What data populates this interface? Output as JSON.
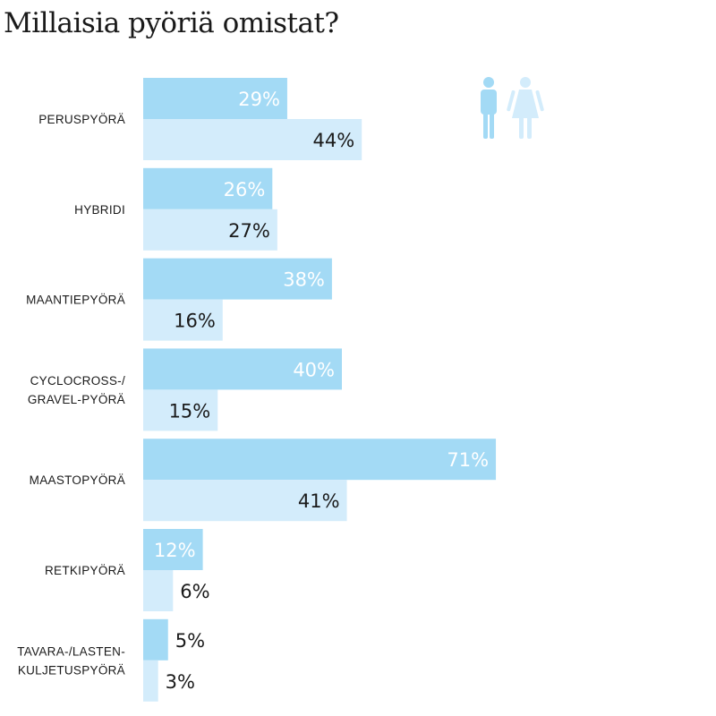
{
  "chart_data": {
    "type": "bar",
    "orientation": "horizontal",
    "title": "Millaisia pyöriä omistat?",
    "categories": [
      [
        "PERUSPYÖRÄ"
      ],
      [
        "HYBRIDI"
      ],
      [
        "MAANTIEPYÖRÄ"
      ],
      [
        "CYCLOCROSS-/",
        "GRAVEL-PYÖRÄ"
      ],
      [
        "MAASTOPYÖRÄ"
      ],
      [
        "RETKIPYÖRÄ"
      ],
      [
        "TAVARA-/LASTEN-",
        "KULJETUSPYÖRÄ"
      ]
    ],
    "series": [
      {
        "name": "men",
        "icon": "man-icon",
        "color": "#a3daf5",
        "values": [
          29,
          26,
          38,
          40,
          71,
          12,
          5
        ]
      },
      {
        "name": "women",
        "icon": "woman-icon",
        "color": "#d3ecfb",
        "values": [
          44,
          27,
          16,
          15,
          41,
          6,
          3
        ]
      }
    ],
    "value_suffix": "%",
    "xlim": [
      0,
      100
    ],
    "legend": "top-right"
  }
}
